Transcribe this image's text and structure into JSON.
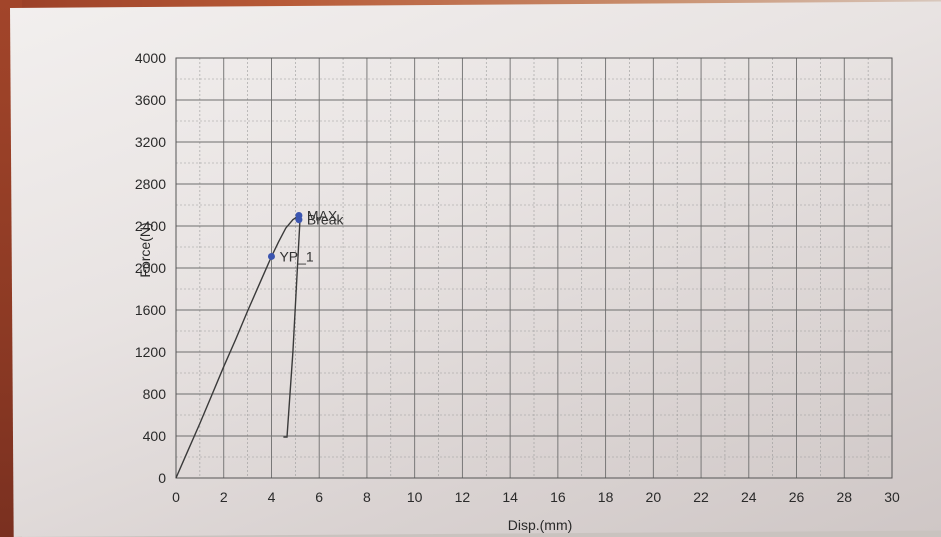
{
  "chart_data": {
    "type": "line",
    "title": "",
    "xlabel": "Disp.(mm)",
    "ylabel": "Force(N)",
    "xlim": [
      0,
      30
    ],
    "ylim": [
      0,
      4000
    ],
    "x_ticks": [
      0,
      2,
      4,
      6,
      8,
      10,
      12,
      14,
      16,
      18,
      20,
      22,
      24,
      26,
      28,
      30
    ],
    "y_ticks": [
      0,
      400,
      800,
      1200,
      1600,
      2000,
      2400,
      2800,
      3200,
      3600,
      4000
    ],
    "x_minor_step": 1,
    "y_minor_step": 200,
    "grid": true,
    "series": [
      {
        "x": [
          0,
          0.5,
          1.0,
          1.5,
          2.0,
          2.5,
          3.0,
          3.5,
          4.0,
          4.3,
          4.6,
          4.9,
          5.1,
          5.15,
          5.2,
          4.9,
          4.65,
          4.5
        ],
        "y": [
          0,
          260,
          520,
          790,
          1060,
          1320,
          1590,
          1850,
          2110,
          2250,
          2380,
          2460,
          2490,
          2500,
          2480,
          1200,
          390,
          390
        ],
        "color": "#3a3a3a"
      }
    ],
    "annotations": [
      {
        "label": "YP_1",
        "x": 4.0,
        "y": 2110,
        "marker_color": "#3b55b0"
      },
      {
        "label": "MAX",
        "x": 5.15,
        "y": 2500,
        "marker_color": "#3b55b0"
      },
      {
        "label": "Break",
        "x": 5.15,
        "y": 2460,
        "marker_color": "#3b55b0"
      }
    ]
  }
}
